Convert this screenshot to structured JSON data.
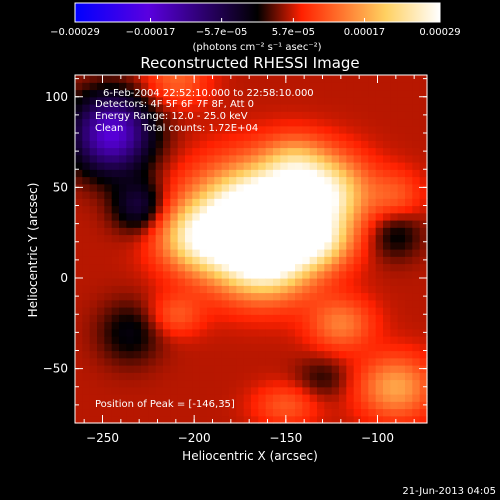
{
  "chart_data": {
    "type": "heatmap",
    "title": "Reconstructed RHESSI Image",
    "xlabel": "Heliocentric X (arcsec)",
    "ylabel": "Heliocentric Y (arcsec)",
    "xlim": [
      -265,
      -73
    ],
    "ylim": [
      -80,
      112
    ],
    "x_ticks": [
      -250,
      -200,
      -150,
      -100
    ],
    "y_ticks": [
      -50,
      0,
      50,
      100
    ],
    "x_tick_labels": [
      "−250",
      "−200",
      "−150",
      "−100"
    ],
    "y_tick_labels": [
      "−50",
      "0",
      "50",
      "100"
    ],
    "colorbar": {
      "range": [
        -0.00029,
        0.00029
      ],
      "ticks": [
        -0.00029,
        -0.00017,
        -5.7e-05,
        5.7e-05,
        0.00017,
        0.00029
      ],
      "tick_labels": [
        "−0.00029",
        "−0.00017",
        "−5.7e−05",
        "5.7e−05",
        "0.00017",
        "0.00029"
      ],
      "unit_label": "(photons cm⁻² s⁻¹ asec⁻²)",
      "colors": [
        "#0000ff",
        "#5a00e0",
        "#000000",
        "#ff2000",
        "#ffd060",
        "#ffffff"
      ]
    },
    "annotations": {
      "time_range": "6-Feb-2004 22:52:10.000 to 22:58:10.000",
      "detectors": "Detectors: 4F 5F 6F 7F 8F, Att 0",
      "energy_range": "Energy Range: 12.0 - 25.0 keV",
      "clean_label": "Clean",
      "total_counts": "Total counts: 1.72E+04",
      "peak_position": "Position of Peak = [-146,35]"
    },
    "peak": [
      -146,
      35
    ],
    "background_value": 5e-05,
    "components": [
      {
        "x": -175,
        "y": 30,
        "sigma_x": 22,
        "sigma_y": 20,
        "amp": 0.00024
      },
      {
        "x": -150,
        "y": 38,
        "sigma_x": 20,
        "sigma_y": 18,
        "amp": 0.00022
      },
      {
        "x": -160,
        "y": 10,
        "sigma_x": 18,
        "sigma_y": 15,
        "amp": 0.00018
      },
      {
        "x": -125,
        "y": 48,
        "sigma_x": 15,
        "sigma_y": 14,
        "amp": 0.00014
      },
      {
        "x": -200,
        "y": 22,
        "sigma_x": 14,
        "sigma_y": 12,
        "amp": 0.00012
      },
      {
        "x": -130,
        "y": 20,
        "sigma_x": 12,
        "sigma_y": 10,
        "amp": 0.0001
      },
      {
        "x": -145,
        "y": 65,
        "sigma_x": 12,
        "sigma_y": 10,
        "amp": 8e-05
      },
      {
        "x": -90,
        "y": -60,
        "sigma_x": 14,
        "sigma_y": 12,
        "amp": 0.00012
      },
      {
        "x": -120,
        "y": -25,
        "sigma_x": 12,
        "sigma_y": 10,
        "amp": 9e-05
      },
      {
        "x": -210,
        "y": -20,
        "sigma_x": 10,
        "sigma_y": 8,
        "amp": 6e-05
      },
      {
        "x": -210,
        "y": 110,
        "sigma_x": 12,
        "sigma_y": 10,
        "amp": 7e-05
      },
      {
        "x": -90,
        "y": 45,
        "sigma_x": 10,
        "sigma_y": 10,
        "amp": 6e-05
      },
      {
        "x": -150,
        "y": -70,
        "sigma_x": 12,
        "sigma_y": 8,
        "amp": 6e-05
      },
      {
        "x": -245,
        "y": 80,
        "sigma_x": 15,
        "sigma_y": 15,
        "amp": -0.00022
      },
      {
        "x": -230,
        "y": 40,
        "sigma_x": 10,
        "sigma_y": 10,
        "amp": -0.0001
      },
      {
        "x": -235,
        "y": -30,
        "sigma_x": 12,
        "sigma_y": 12,
        "amp": -6e-05
      },
      {
        "x": -90,
        "y": 25,
        "sigma_x": 10,
        "sigma_y": 10,
        "amp": -6e-05
      },
      {
        "x": -130,
        "y": -55,
        "sigma_x": 10,
        "sigma_y": 8,
        "amp": -4e-05
      }
    ]
  },
  "footer": {
    "timestamp": "21-Jun-2013 04:05"
  }
}
